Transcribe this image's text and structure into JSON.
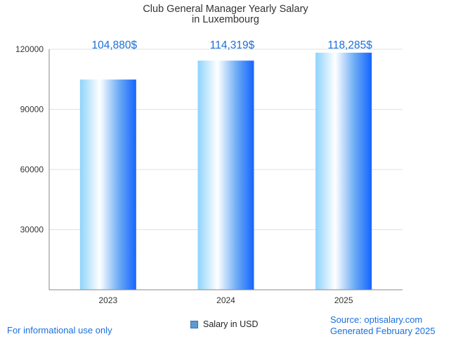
{
  "chart_data": {
    "type": "bar",
    "title_lines": [
      "Club General Manager Yearly Salary",
      "in Luxembourg"
    ],
    "categories": [
      "2023",
      "2024",
      "2025"
    ],
    "series": [
      {
        "name": "Salary in USD",
        "values": [
          104880,
          114319,
          118285
        ]
      }
    ],
    "data_labels": [
      "104,880$",
      "114,319$",
      "118,285$"
    ],
    "y_ticks": [
      30000,
      60000,
      90000,
      120000
    ],
    "ylim": [
      0,
      120000
    ],
    "grid": true,
    "legend": "bottom-center"
  },
  "footer": {
    "disclaimer": "For informational use only",
    "source": "Source: optisalary.com",
    "generated": "Generated February 2025"
  },
  "colors": {
    "bar_light": "#cfeeff",
    "bar_mid": "#8fd3fb",
    "bar_white": "#ffffff",
    "bar_blue": "#1464ff",
    "label": "#1a6fdd",
    "grid": "#e2e2e2",
    "axis": "#888888"
  },
  "legend_icon": "square-swatch"
}
